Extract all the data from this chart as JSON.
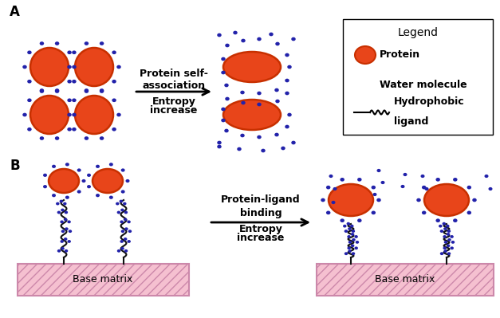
{
  "bg_color": "#ffffff",
  "protein_color": "#e8451a",
  "protein_edge_color": "#c83000",
  "water_color": "#2222aa",
  "matrix_color": "#f5c0d0",
  "matrix_hatch_color": "#cc88aa",
  "text_color": "#000000",
  "label_A": "A",
  "label_B": "B",
  "arrow_text_A1": "Protein self-",
  "arrow_text_A2": "association",
  "arrow_text_A3": "Entropy",
  "arrow_text_A4": "increase",
  "arrow_text_B1": "Protein-ligand",
  "arrow_text_B2": "binding",
  "arrow_text_B3": "Entropy",
  "arrow_text_B4": "increase",
  "legend_title": "Legend",
  "legend_protein": "Protein",
  "legend_water": "Water molecule",
  "legend_ligand": "Hydrophobic",
  "legend_ligand2": "ligand",
  "matrix_label": "Base matrix"
}
